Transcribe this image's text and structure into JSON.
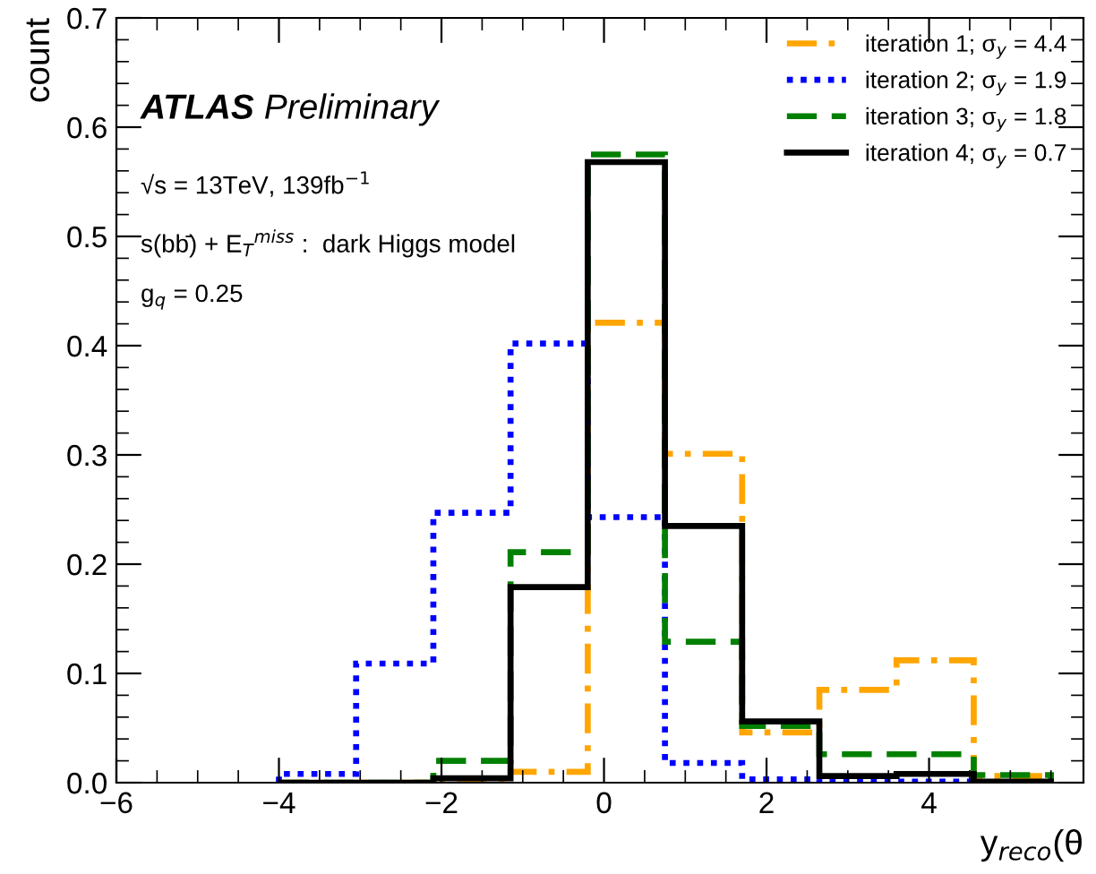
{
  "chart_data": {
    "type": "histogram",
    "xlabel": "y$_{reco}$(θ",
    "ylabel": "count",
    "bins": [
      -4.0,
      -3.05,
      -2.1,
      -1.15,
      -0.2,
      0.75,
      1.7,
      2.65,
      3.6,
      4.55,
      5.5
    ],
    "series": [
      {
        "name": "iteration 1; σ$_{y}$ = 4.4",
        "color": "#ffa500",
        "line_style": "dashdot",
        "values": [
          0,
          0,
          0.001,
          0.01,
          0.421,
          0.301,
          0.046,
          0.085,
          0.112,
          0.006
        ]
      },
      {
        "name": "iteration 2; σ$_{y}$ = 1.9",
        "color": "#0000ff",
        "line_style": "dotted",
        "values": [
          0.008,
          0.109,
          0.247,
          0.402,
          0.243,
          0.018,
          0.003,
          0.001,
          0.001,
          0
        ]
      },
      {
        "name": "iteration 3; σ$_{y}$ = 1.8",
        "color": "#008000",
        "line_style": "dashed",
        "values": [
          0,
          0,
          0.02,
          0.211,
          0.575,
          0.129,
          0.052,
          0.026,
          0.026,
          0.007
        ]
      },
      {
        "name": "iteration 4; σ$_{y}$ = 0.7",
        "color": "#000000",
        "line_style": "solid",
        "values": [
          0,
          0,
          0.004,
          0.179,
          0.568,
          0.235,
          0.056,
          0.006,
          0.008,
          0.001
        ]
      }
    ],
    "xlim": [
      -6,
      5.9
    ],
    "xticks": [
      {
        "value": -6,
        "label": "−6"
      },
      {
        "value": -4,
        "label": "−4"
      },
      {
        "value": -2,
        "label": "−2"
      },
      0,
      2,
      4
    ],
    "ylim": [
      0,
      0.7
    ],
    "yticks": [
      {
        "value": 0,
        "label": "0.0"
      },
      0.1,
      0.2,
      0.3,
      0.4,
      0.5,
      0.6,
      0.7
    ],
    "grid": false,
    "legend": "top right",
    "annotations": [
      "ATLAS Preliminary",
      "√s = 13TeV, 139fb$^{−1}$",
      "s(bb̄) + E$_{T}$$^{miss}$ :  dark Higgs model",
      "g$_{q}$ = 0.25"
    ]
  }
}
